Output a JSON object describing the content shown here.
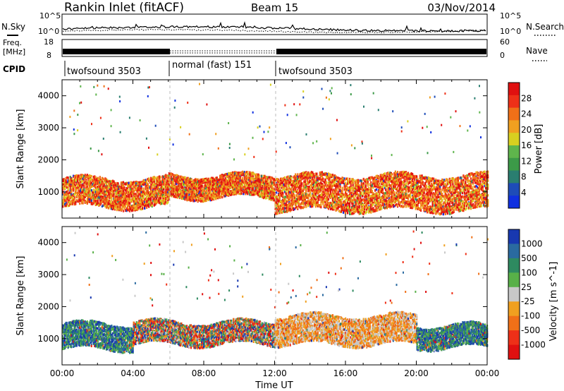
{
  "header": {
    "title": "Rankin Inlet (fitACF)",
    "beam": "Beam 15",
    "date": "03/Nov/2014"
  },
  "summary_panels": {
    "nsky": {
      "label": "N.Sky",
      "right_label": "N.Search",
      "left_ticks": [
        "10^5",
        "10^0"
      ],
      "right_ticks": [
        "10^5",
        "10^0"
      ]
    },
    "freq": {
      "label_line1": "Freq.",
      "label_line2": "[MHz]",
      "left_ticks": [
        "18",
        "8"
      ],
      "right_label": "Nave",
      "right_ticks": [
        "60",
        "0"
      ]
    },
    "cpid": {
      "label": "CPID",
      "segments": [
        {
          "label": "twofsound 3503",
          "start_hour": 0,
          "end_hour": 6
        },
        {
          "label": "normal (fast) 151",
          "start_hour": 6,
          "end_hour": 12
        },
        {
          "label": "twofsound 3503",
          "start_hour": 12,
          "end_hour": 24
        }
      ]
    }
  },
  "chart_data": [
    {
      "type": "heatmap",
      "title": "",
      "xlabel": "",
      "ylabel": "Slant Range [km]",
      "xlim": [
        0,
        24
      ],
      "ylim": [
        180,
        4500
      ],
      "yticks": [
        "1000",
        "2000",
        "3000",
        "4000"
      ],
      "colorbar": {
        "label": "Power [dB]",
        "range": [
          0,
          32
        ],
        "ticks": [
          "4",
          "8",
          "12",
          "16",
          "20",
          "24",
          "28"
        ],
        "colors": [
          "#1030e0",
          "#1e4cb8",
          "#2a7e70",
          "#3c9a48",
          "#5fb54c",
          "#d8d020",
          "#f0a020",
          "#f07018",
          "#ee3018",
          "#e01010"
        ]
      },
      "scatter_bands": [
        {
          "start_hour": 0,
          "end_hour": 6,
          "center_km": 1000,
          "width_km": 450,
          "dominant": "high"
        },
        {
          "start_hour": 6,
          "end_hour": 12,
          "center_km": 1200,
          "width_km": 350,
          "dominant": "high"
        },
        {
          "start_hour": 12,
          "end_hour": 24,
          "center_km": 1000,
          "width_km": 550,
          "dominant": "high"
        }
      ]
    },
    {
      "type": "heatmap",
      "title": "",
      "xlabel": "Time UT",
      "ylabel": "Slant Range [km]",
      "xlim": [
        0,
        24
      ],
      "ylim": [
        180,
        4500
      ],
      "xticks": [
        "00:00",
        "04:00",
        "08:00",
        "12:00",
        "16:00",
        "20:00",
        "00:00"
      ],
      "yticks": [
        "1000",
        "2000",
        "3000",
        "4000"
      ],
      "colorbar": {
        "label": "Velocity [m s^-1]",
        "range": [
          -1200,
          1200
        ],
        "ticks": [
          "1000",
          "500",
          "100",
          "25",
          "-25",
          "-100",
          "-500",
          "-1000"
        ],
        "colors": [
          "#1838b0",
          "#2a6aa0",
          "#2e8a60",
          "#58b048",
          "#c8c8c8",
          "#f0a020",
          "#f07018",
          "#ee3018",
          "#e01010"
        ]
      },
      "scatter_bands": [
        {
          "start_hour": 0,
          "end_hour": 4,
          "center_km": 1100,
          "width_km": 400,
          "dominant": "positive"
        },
        {
          "start_hour": 4,
          "end_hour": 12,
          "center_km": 1200,
          "width_km": 350,
          "dominant": "mixed"
        },
        {
          "start_hour": 12,
          "end_hour": 20,
          "center_km": 1300,
          "width_km": 450,
          "dominant": "low"
        },
        {
          "start_hour": 20,
          "end_hour": 24,
          "center_km": 1100,
          "width_km": 350,
          "dominant": "positive"
        }
      ]
    }
  ]
}
